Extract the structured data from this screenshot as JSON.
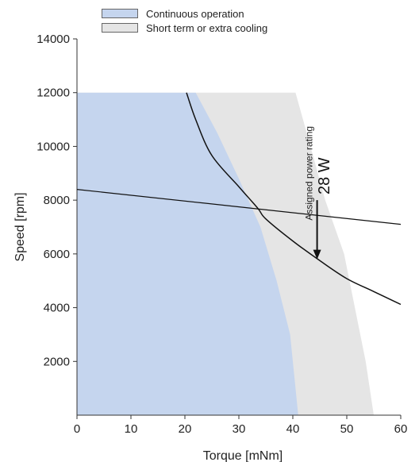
{
  "chart_data": {
    "type": "area",
    "xlabel": "Torque [mNm]",
    "ylabel": "Speed [rpm]",
    "xlim": [
      0,
      60
    ],
    "ylim": [
      0,
      14000
    ],
    "x_ticks": [
      "0",
      "10",
      "20",
      "30",
      "40",
      "50",
      "60"
    ],
    "y_ticks": [
      "2000",
      "4000",
      "6000",
      "8000",
      "10000",
      "12000",
      "14000"
    ],
    "grid": false,
    "legend_placement": "top",
    "legend": [
      {
        "label": "Continuous operation",
        "color": "#c5d5ee"
      },
      {
        "label": "Short term or extra cooling",
        "color": "#e5e5e5"
      }
    ],
    "series": [
      {
        "name": "Continuous operation",
        "kind": "region",
        "color": "#c5d5ee",
        "boundary": [
          [
            0,
            12000
          ],
          [
            22,
            12000
          ],
          [
            26,
            10500
          ],
          [
            30,
            8800
          ],
          [
            34,
            7000
          ],
          [
            37,
            5000
          ],
          [
            39.5,
            3000
          ],
          [
            41,
            0
          ]
        ]
      },
      {
        "name": "Short term or extra cooling",
        "kind": "region",
        "color": "#e5e5e5",
        "boundary": [
          [
            0,
            12000
          ],
          [
            40.5,
            12000
          ],
          [
            43,
            10200
          ],
          [
            46,
            8000
          ],
          [
            49.5,
            6000
          ],
          [
            51.5,
            4000
          ],
          [
            53.5,
            2000
          ],
          [
            55,
            0
          ]
        ]
      },
      {
        "kind": "line",
        "label": "",
        "color": "#111111",
        "points": [
          [
            0,
            8400
          ],
          [
            60,
            7100
          ]
        ]
      },
      {
        "kind": "line",
        "label": "Assigned power rating 28 W",
        "color": "#111111",
        "points": [
          [
            20.3,
            12000
          ],
          [
            22,
            11000
          ],
          [
            25,
            9660
          ],
          [
            30,
            8500
          ],
          [
            33.5,
            7700
          ],
          [
            35,
            7300
          ],
          [
            40,
            6480
          ],
          [
            45,
            5750
          ],
          [
            50,
            5080
          ],
          [
            55,
            4600
          ],
          [
            60,
            4120
          ]
        ]
      }
    ],
    "annotations": [
      {
        "text": "Assigned power rating",
        "x": 44.5,
        "y": 9000
      },
      {
        "text": "28 W",
        "x": 46.5,
        "y": 8900
      }
    ],
    "arrow": {
      "from": [
        44.5,
        8000
      ],
      "to": [
        44.5,
        5800
      ]
    }
  }
}
